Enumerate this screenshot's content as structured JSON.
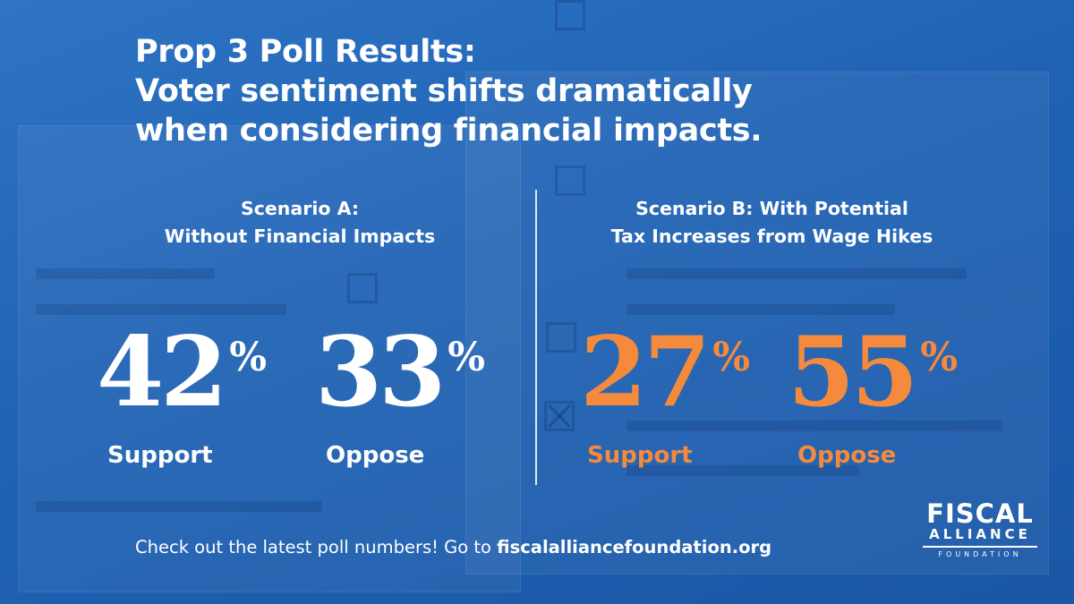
{
  "headline": {
    "line1": "Prop 3 Poll Results:",
    "line2": "Voter sentiment shifts dramatically",
    "line3": "when considering financial impacts."
  },
  "scenario_a": {
    "title_line1": "Scenario A:",
    "title_line2": "Without Financial Impacts",
    "support_value": "42",
    "support_label": "Support",
    "oppose_value": "33",
    "oppose_label": "Oppose",
    "percent_sign": "%"
  },
  "scenario_b": {
    "title_line1": "Scenario B: With Potential",
    "title_line2": "Tax Increases from Wage Hikes",
    "support_value": "27",
    "support_label": "Support",
    "oppose_value": "55",
    "oppose_label": "Oppose",
    "percent_sign": "%"
  },
  "footer": {
    "text": "Check out the latest poll numbers!  Go to ",
    "url": "fiscalalliancefoundation.org"
  },
  "logo": {
    "line1": "FISCAL",
    "line2": "ALLIANCE",
    "line3": "FOUNDATION"
  },
  "colors": {
    "background": "#1f62b4",
    "scenario_a_numbers": "#ffffff",
    "scenario_b_numbers": "#f58a3c"
  }
}
